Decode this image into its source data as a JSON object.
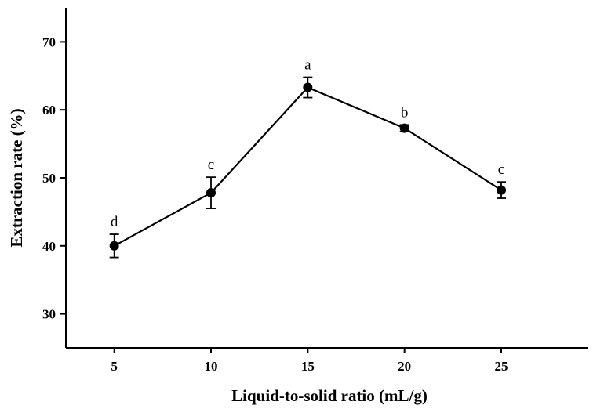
{
  "chart_data": {
    "type": "line",
    "title": "",
    "xlabel": "Liquid-to-solid ratio (mL/g)",
    "ylabel": "Extraction rate (%)",
    "x": [
      5,
      10,
      15,
      20,
      25
    ],
    "xticks": [
      "5",
      "10",
      "15",
      "20",
      "25"
    ],
    "xlim": [
      2.5,
      29.5
    ],
    "ylim": [
      25,
      75
    ],
    "yticks": [
      "30",
      "40",
      "50",
      "60",
      "70"
    ],
    "grid": false,
    "legend": "none",
    "series": [
      {
        "values": [
          40.0,
          47.8,
          63.3,
          57.3,
          48.2
        ],
        "errors": [
          1.7,
          2.3,
          1.5,
          0.5,
          1.2
        ],
        "significance": [
          "d",
          "c",
          "a",
          "b",
          "c"
        ],
        "color": "#000000",
        "marker": "circle"
      }
    ]
  }
}
